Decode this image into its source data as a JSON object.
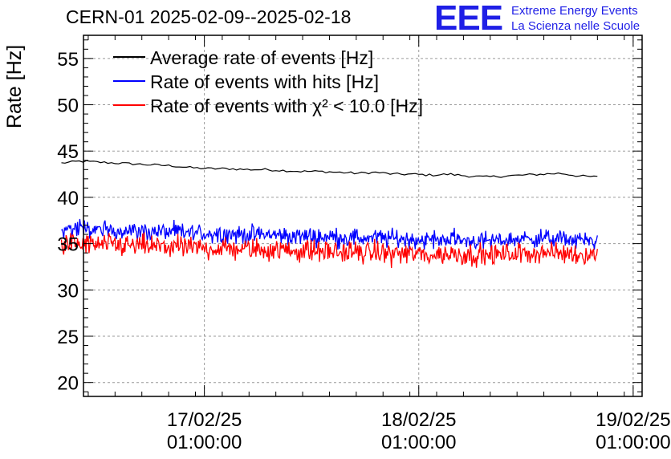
{
  "header": {
    "title": "CERN-01 2025-02-09--2025-02-18",
    "logo_mark": "EEE",
    "logo_line1": "Extreme Energy Events",
    "logo_line2": "La Scienza nelle Scuole"
  },
  "colors": {
    "average": "#000000",
    "hits": "#0000ff",
    "chi2": "#ff0000",
    "logo": "#1f1fe6",
    "grid": "#9a9a9a"
  },
  "chart_data": {
    "type": "line",
    "title": "CERN-01 2025-02-09--2025-02-18",
    "xlabel": "",
    "ylabel": "Rate [Hz]",
    "ylim": [
      18.5,
      57.5
    ],
    "yticks": [
      20,
      25,
      30,
      35,
      40,
      45,
      50,
      55
    ],
    "xlim": [
      "2025-02-16T11:28:00",
      "2025-02-19T02:00:00"
    ],
    "xticks": [
      {
        "value": "2025-02-17T01:00:00",
        "label_date": "17/02/25",
        "label_time": "01:00:00"
      },
      {
        "value": "2025-02-18T01:00:00",
        "label_date": "18/02/25",
        "label_time": "01:00:00"
      },
      {
        "value": "2025-02-19T01:00:00",
        "label_date": "19/02/25",
        "label_time": "01:00:00"
      }
    ],
    "grid": true,
    "legend_position": "top-left",
    "x_start": "2025-02-16T09:00:00",
    "x_end": "2025-02-18T21:00:00",
    "series": [
      {
        "name": "Average rate of events [Hz]",
        "color": "#000000",
        "style": "smooth",
        "y": [
          43.7,
          43.9,
          43.8,
          43.7,
          43.6,
          43.5,
          43.4,
          43.2,
          43.1,
          43.1,
          43.0,
          43.0,
          42.9,
          42.8,
          42.8,
          42.7,
          42.6,
          42.7,
          42.5,
          42.5,
          42.4,
          42.5,
          42.3,
          42.2,
          42.3,
          42.4,
          42.5,
          42.6,
          42.3,
          42.2
        ]
      },
      {
        "name": "Rate of events with hits [Hz]",
        "color": "#0000ff",
        "style": "noisy",
        "y_low": [
          35.4,
          35.3,
          35.2,
          35.2,
          35.1,
          35.0,
          35.0,
          34.9,
          34.8,
          34.8,
          34.7,
          34.7,
          34.6,
          34.5,
          34.5,
          34.4,
          34.3,
          34.4,
          34.3,
          34.2,
          34.1,
          34.3,
          34.1,
          34.0,
          34.2,
          34.3,
          34.4,
          34.3,
          34.2,
          34.1
        ],
        "y_high": [
          37.9,
          37.8,
          37.8,
          37.7,
          37.6,
          37.6,
          37.5,
          37.4,
          37.4,
          37.3,
          37.2,
          37.3,
          37.1,
          37.1,
          37.0,
          37.0,
          36.9,
          36.9,
          36.8,
          36.7,
          36.7,
          36.8,
          36.6,
          36.5,
          36.6,
          36.7,
          36.8,
          36.7,
          36.6,
          36.3
        ]
      },
      {
        "name": "Rate of events with χ² < 10.0 [Hz]",
        "color": "#ff0000",
        "style": "noisy",
        "y_low": [
          33.5,
          33.4,
          33.3,
          33.3,
          33.2,
          33.2,
          33.1,
          33.0,
          33.0,
          32.9,
          32.9,
          32.8,
          32.8,
          32.7,
          32.7,
          32.6,
          32.5,
          32.5,
          32.4,
          32.4,
          32.2,
          32.4,
          32.3,
          32.3,
          32.4,
          32.5,
          32.6,
          32.5,
          32.4,
          32.5
        ],
        "y_high": [
          36.6,
          36.5,
          36.4,
          36.4,
          36.3,
          36.2,
          36.2,
          36.1,
          36.0,
          36.0,
          35.9,
          35.9,
          35.8,
          35.8,
          35.7,
          35.6,
          35.6,
          35.5,
          35.5,
          35.4,
          35.3,
          35.4,
          35.3,
          35.2,
          35.3,
          35.4,
          35.5,
          35.4,
          35.3,
          35.2
        ]
      }
    ]
  }
}
